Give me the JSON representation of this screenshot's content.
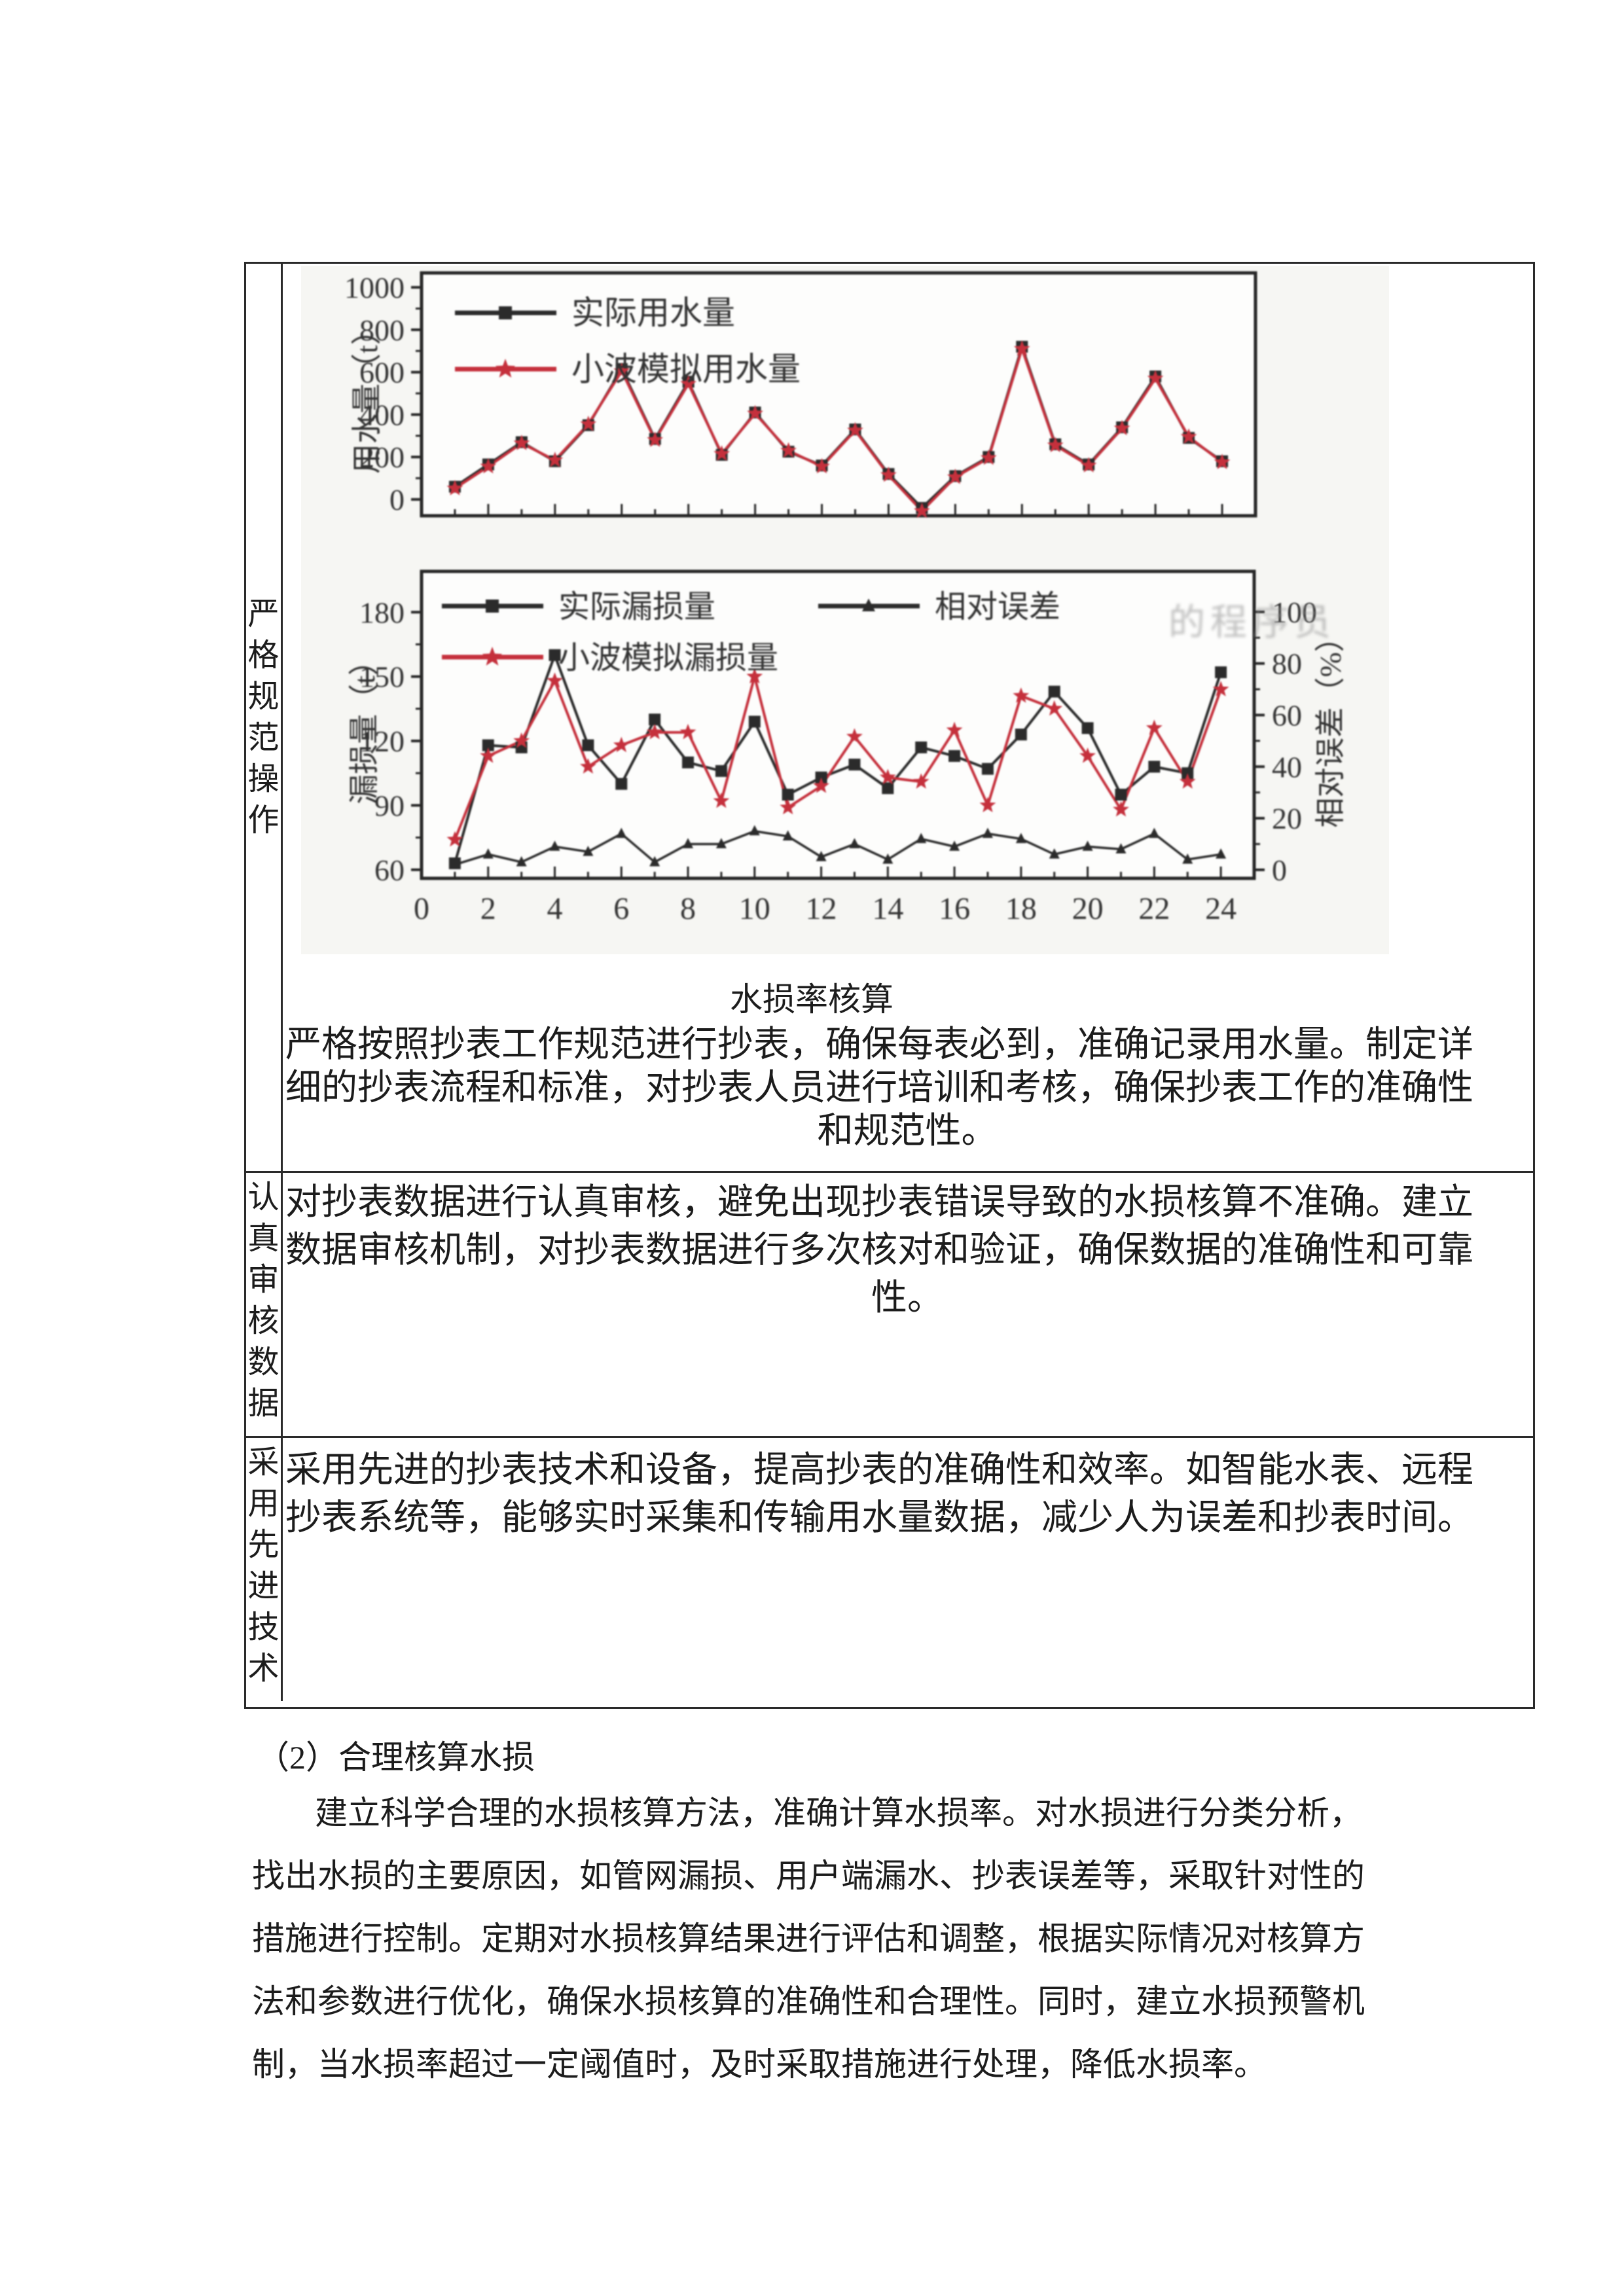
{
  "table": {
    "rows": [
      {
        "label": "严格规范操作",
        "caption": "水损率核算",
        "lines": [
          "严格按照抄表工作规范进行抄表，确保每表必到，准确记录用水量。制定详",
          "细的抄表流程和标准，对抄表人员进行培训和考核，确保抄表工作的准确性",
          "和规范性。"
        ]
      },
      {
        "label": "认真审核数据",
        "lines": [
          "对抄表数据进行认真审核，避免出现抄表错误导致的水损核算不准确。建立",
          "数据审核机制，对抄表数据进行多次核对和验证，确保数据的准确性和可靠",
          "性。"
        ]
      },
      {
        "label": "采用先进技术",
        "lines": [
          "采用先进的抄表技术和设备，提高抄表的准确性和效率。如智能水表、远程",
          "抄表系统等，能够实时采集和传输用水量数据，减少人为误差和抄表时间。"
        ]
      }
    ]
  },
  "watermark": "的程序员",
  "section": {
    "heading": "（2）合理核算水损",
    "lines": [
      "建立科学合理的水损核算方法，准确计算水损率。对水损进行分类分析，",
      "找出水损的主要原因，如管网漏损、用户端漏水、抄表误差等，采取针对性的",
      "措施进行控制。定期对水损核算结果进行评估和调整，根据实际情况对核算方",
      "法和参数进行优化，确保水损核算的准确性和合理性。同时，建立水损预警机",
      "制，当水损率超过一定阈值时，及时采取措施进行处理，降低水损率。"
    ]
  },
  "colors": {
    "series_black": "#2b2b2b",
    "series_red": "#c5303c",
    "axis": "#262626",
    "tick_text": "#333333"
  },
  "chart_data": [
    {
      "type": "line",
      "title": "",
      "x": [
        1,
        2,
        3,
        4,
        5,
        6,
        7,
        8,
        9,
        10,
        11,
        12,
        13,
        14,
        15,
        16,
        17,
        18,
        19,
        20,
        21,
        22,
        23,
        24
      ],
      "series": [
        {
          "name": "实际用水量",
          "color": "#2b2b2b",
          "marker": "square",
          "values": [
            60,
            165,
            270,
            180,
            350,
            615,
            285,
            555,
            210,
            410,
            225,
            160,
            330,
            120,
            -40,
            110,
            200,
            720,
            260,
            165,
            340,
            580,
            290,
            180
          ]
        },
        {
          "name": "小波模拟用水量",
          "color": "#c5303c",
          "marker": "star",
          "values": [
            52,
            155,
            265,
            185,
            355,
            605,
            280,
            545,
            215,
            405,
            230,
            155,
            325,
            115,
            -55,
            105,
            195,
            710,
            255,
            160,
            335,
            570,
            295,
            175
          ]
        }
      ],
      "xlabel": "",
      "ylabel": "用水量（t）",
      "ylim": [
        -77,
        1068
      ],
      "yticks": [
        0,
        200,
        400,
        600,
        800,
        1000
      ],
      "y_minor_step": 100,
      "xlim": [
        0,
        25
      ],
      "grid": false,
      "legend_position": "upper-left"
    },
    {
      "type": "line",
      "title": "",
      "x": [
        1,
        2,
        3,
        4,
        5,
        6,
        7,
        8,
        9,
        10,
        11,
        12,
        13,
        14,
        15,
        16,
        17,
        18,
        19,
        20,
        21,
        22,
        23,
        24
      ],
      "series": [
        {
          "name": "实际漏损量",
          "axis": "left",
          "color": "#2b2b2b",
          "marker": "square",
          "values": [
            63,
            118,
            117,
            160,
            118,
            100,
            130,
            110,
            106,
            129,
            95,
            103,
            109,
            98,
            117,
            113,
            107,
            123,
            143,
            126,
            95,
            108,
            105,
            152
          ]
        },
        {
          "name": "小波模拟漏损量",
          "axis": "left",
          "color": "#c5303c",
          "marker": "star",
          "values": [
            74,
            113,
            120,
            148,
            108,
            118,
            124,
            124,
            92,
            150,
            89,
            99,
            122,
            103,
            101,
            125,
            90,
            141,
            135,
            113,
            88,
            126,
            101,
            144
          ]
        },
        {
          "name": "相对误差",
          "axis": "right",
          "color": "#2b2b2b",
          "marker": "triangle",
          "values": [
            2,
            6,
            3,
            9,
            7,
            14,
            3,
            10,
            10,
            15,
            13,
            5,
            10,
            4,
            12,
            9,
            14,
            12,
            6,
            9,
            8,
            14,
            4,
            6
          ]
        }
      ],
      "xlabel": "",
      "ylabel_left": "漏损量（t）",
      "ylabel_right": "相对误差（%）",
      "ylim_left": [
        56,
        199
      ],
      "yticks_left": [
        60,
        90,
        120,
        150,
        180
      ],
      "y_minor_step_left": 15,
      "ylim_right": [
        -3.3,
        115.7
      ],
      "yticks_right": [
        0,
        20,
        40,
        60,
        80,
        100
      ],
      "y_minor_step_right": 10,
      "xticks": [
        0,
        2,
        4,
        6,
        8,
        10,
        12,
        14,
        16,
        18,
        20,
        22,
        24
      ],
      "xlim": [
        0,
        25
      ],
      "grid": false,
      "legend_position": "upper-left"
    }
  ]
}
